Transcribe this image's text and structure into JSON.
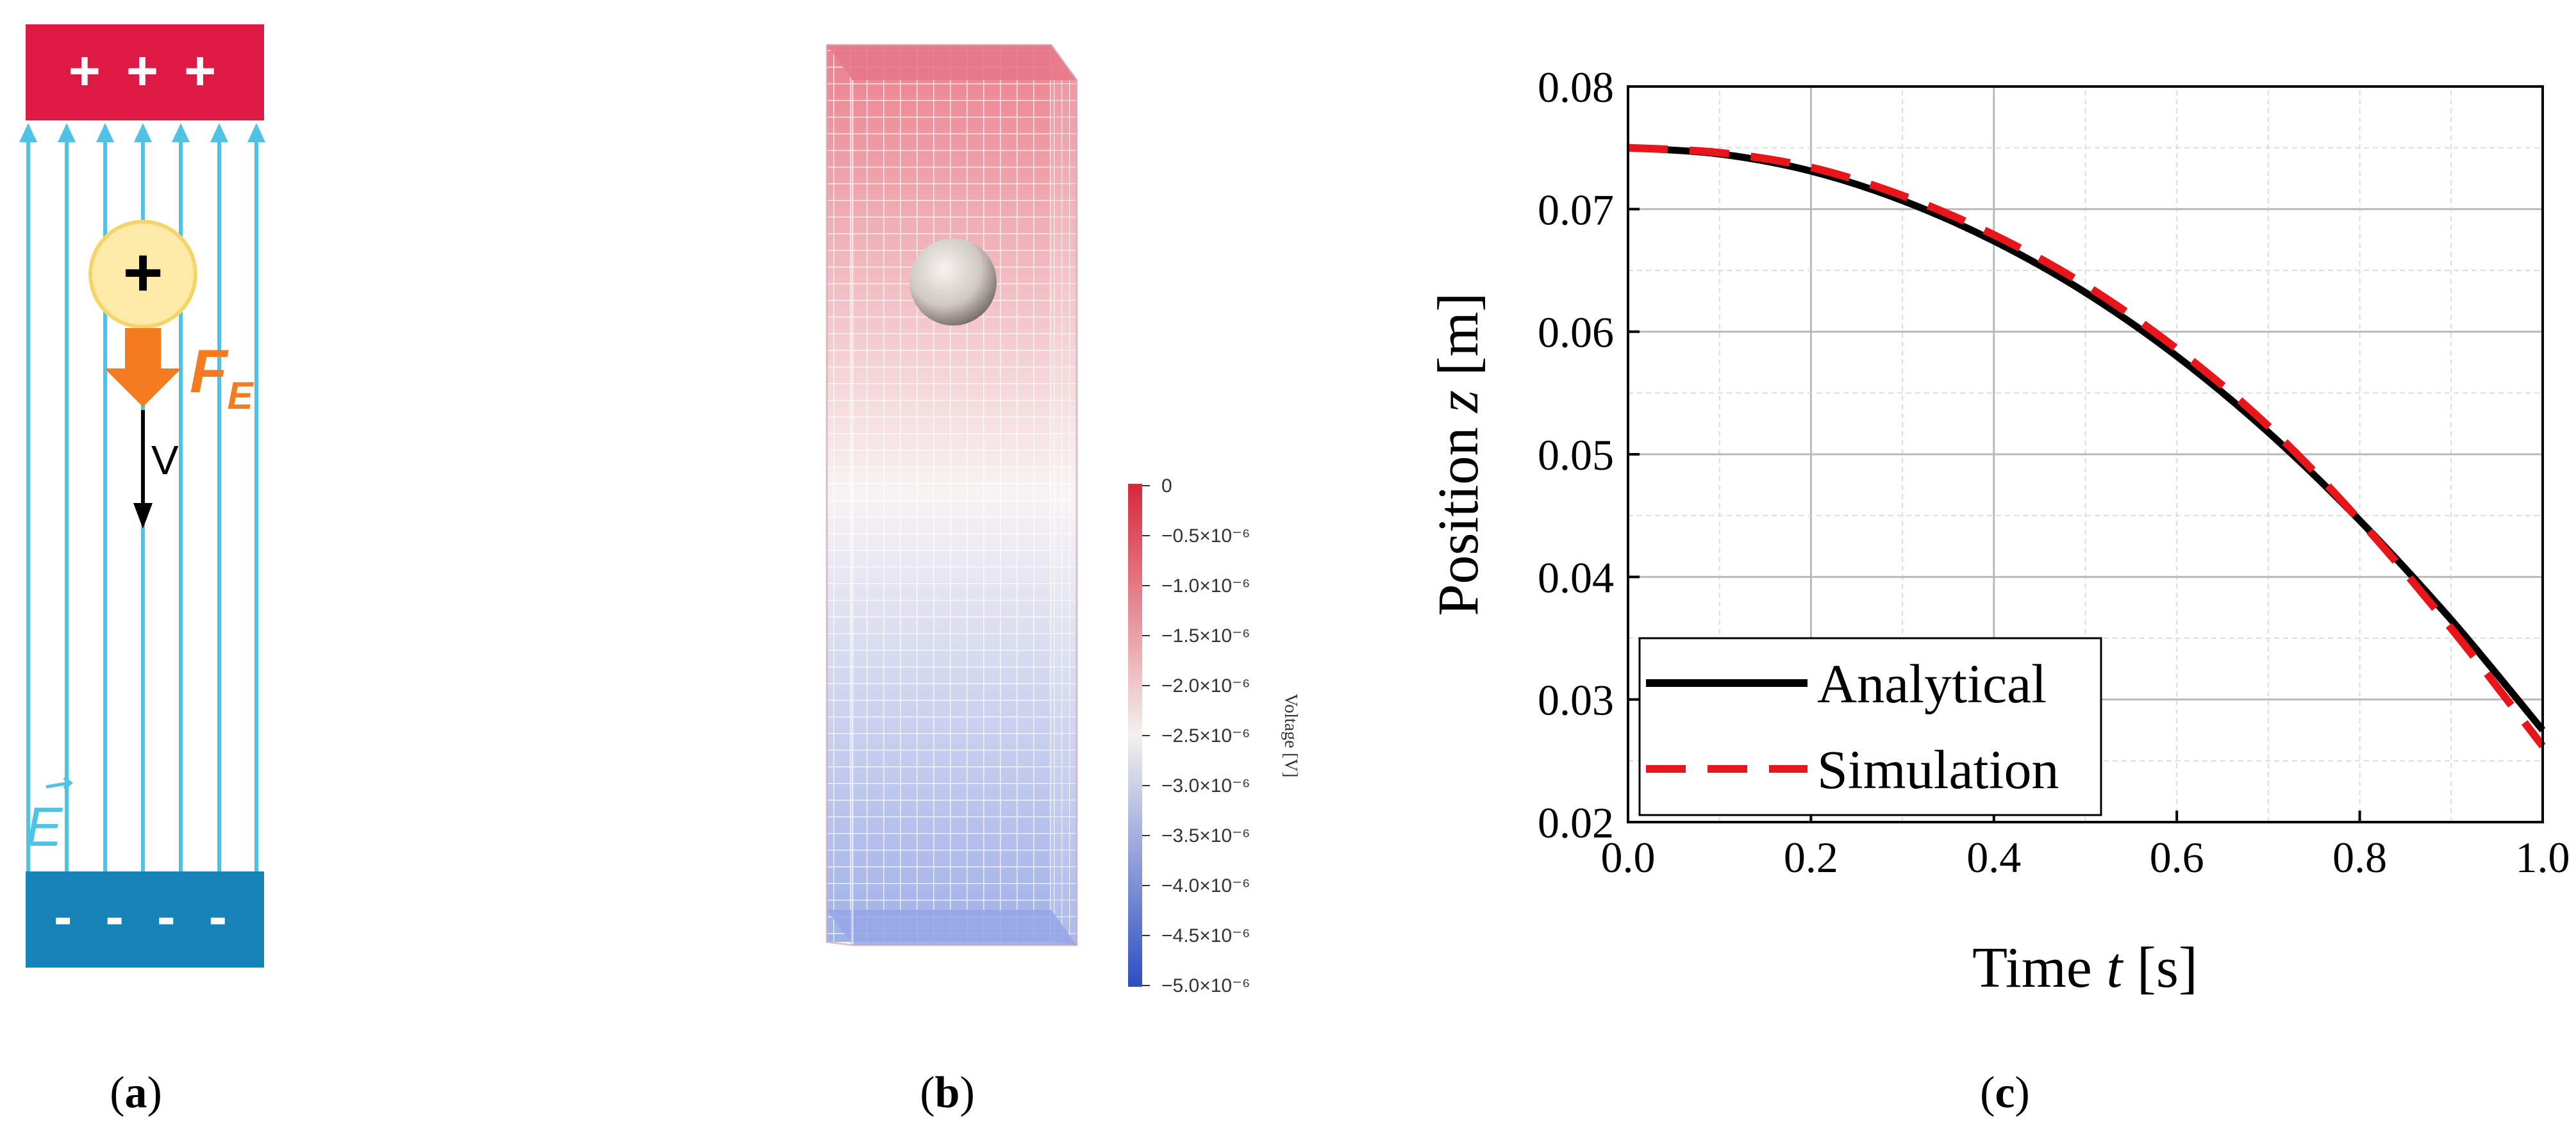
{
  "panel_a": {
    "label_open": "(",
    "label_letter": "a",
    "label_close": ")",
    "top_plate_text": "+ + +",
    "bottom_plate_text": "- - - -",
    "charge_sign": "+",
    "force_symbol": "F",
    "force_subscript": "E",
    "velocity_label": "V",
    "field_label": "E",
    "colors": {
      "top_plate": "#dc1a44",
      "bottom_plate": "#1582b8",
      "field_lines": "#4fc3e6",
      "force_arrow": "#f47b20",
      "charge_fill": "#fde9a8"
    }
  },
  "panel_b": {
    "label_open": "(",
    "label_letter": "b",
    "label_close": ")",
    "colorbar": {
      "title": "Voltage [V]",
      "ticks": [
        "0",
        "−0.5×10⁻⁶",
        "−1.0×10⁻⁶",
        "−1.5×10⁻⁶",
        "−2.0×10⁻⁶",
        "−2.5×10⁻⁶",
        "−3.0×10⁻⁶",
        "−3.5×10⁻⁶",
        "−4.0×10⁻⁶",
        "−4.5×10⁻⁶",
        "−5.0×10⁻⁶"
      ],
      "color_top": "#d8283a",
      "color_mid": "#f4f0ef",
      "color_bottom": "#2c4ec4"
    }
  },
  "panel_c": {
    "label_open": "(",
    "label_letter": "c",
    "label_close": ")"
  },
  "chart_data": {
    "type": "line",
    "title": "",
    "xlabel_pre": "Time ",
    "xlabel_var": "t",
    "xlabel_post": " [s]",
    "ylabel_pre": "Position ",
    "ylabel_var": "z",
    "ylabel_post": " [m]",
    "xlim": [
      0,
      1.0
    ],
    "ylim": [
      0.02,
      0.08
    ],
    "xticks": [
      0,
      0.2,
      0.4,
      0.6,
      0.8,
      1.0
    ],
    "xtick_labels": [
      "0.0",
      "0.2",
      "0.4",
      "0.6",
      "0.8",
      "1.0"
    ],
    "yticks": [
      0.02,
      0.03,
      0.04,
      0.05,
      0.06,
      0.07,
      0.08
    ],
    "ytick_labels": [
      "0.02",
      "0.03",
      "0.04",
      "0.05",
      "0.06",
      "0.07",
      "0.08"
    ],
    "grid": true,
    "legend_position": "bottom-left",
    "series": [
      {
        "name": "Analytical",
        "color": "#000000",
        "style": "solid",
        "x": [
          0,
          0.1,
          0.2,
          0.3,
          0.4,
          0.5,
          0.6,
          0.7,
          0.8,
          0.9,
          1.0
        ],
        "y": [
          0.075,
          0.0745,
          0.0731,
          0.0707,
          0.0674,
          0.0632,
          0.058,
          0.0518,
          0.0446,
          0.0365,
          0.0275
        ]
      },
      {
        "name": "Simulation",
        "color": "#e8151b",
        "style": "dashed",
        "x": [
          0,
          0.1,
          0.2,
          0.3,
          0.4,
          0.5,
          0.6,
          0.7,
          0.8,
          0.9,
          1.0
        ],
        "y": [
          0.075,
          0.0746,
          0.0734,
          0.0711,
          0.0679,
          0.0638,
          0.0586,
          0.0523,
          0.0446,
          0.0358,
          0.0262
        ]
      }
    ]
  }
}
